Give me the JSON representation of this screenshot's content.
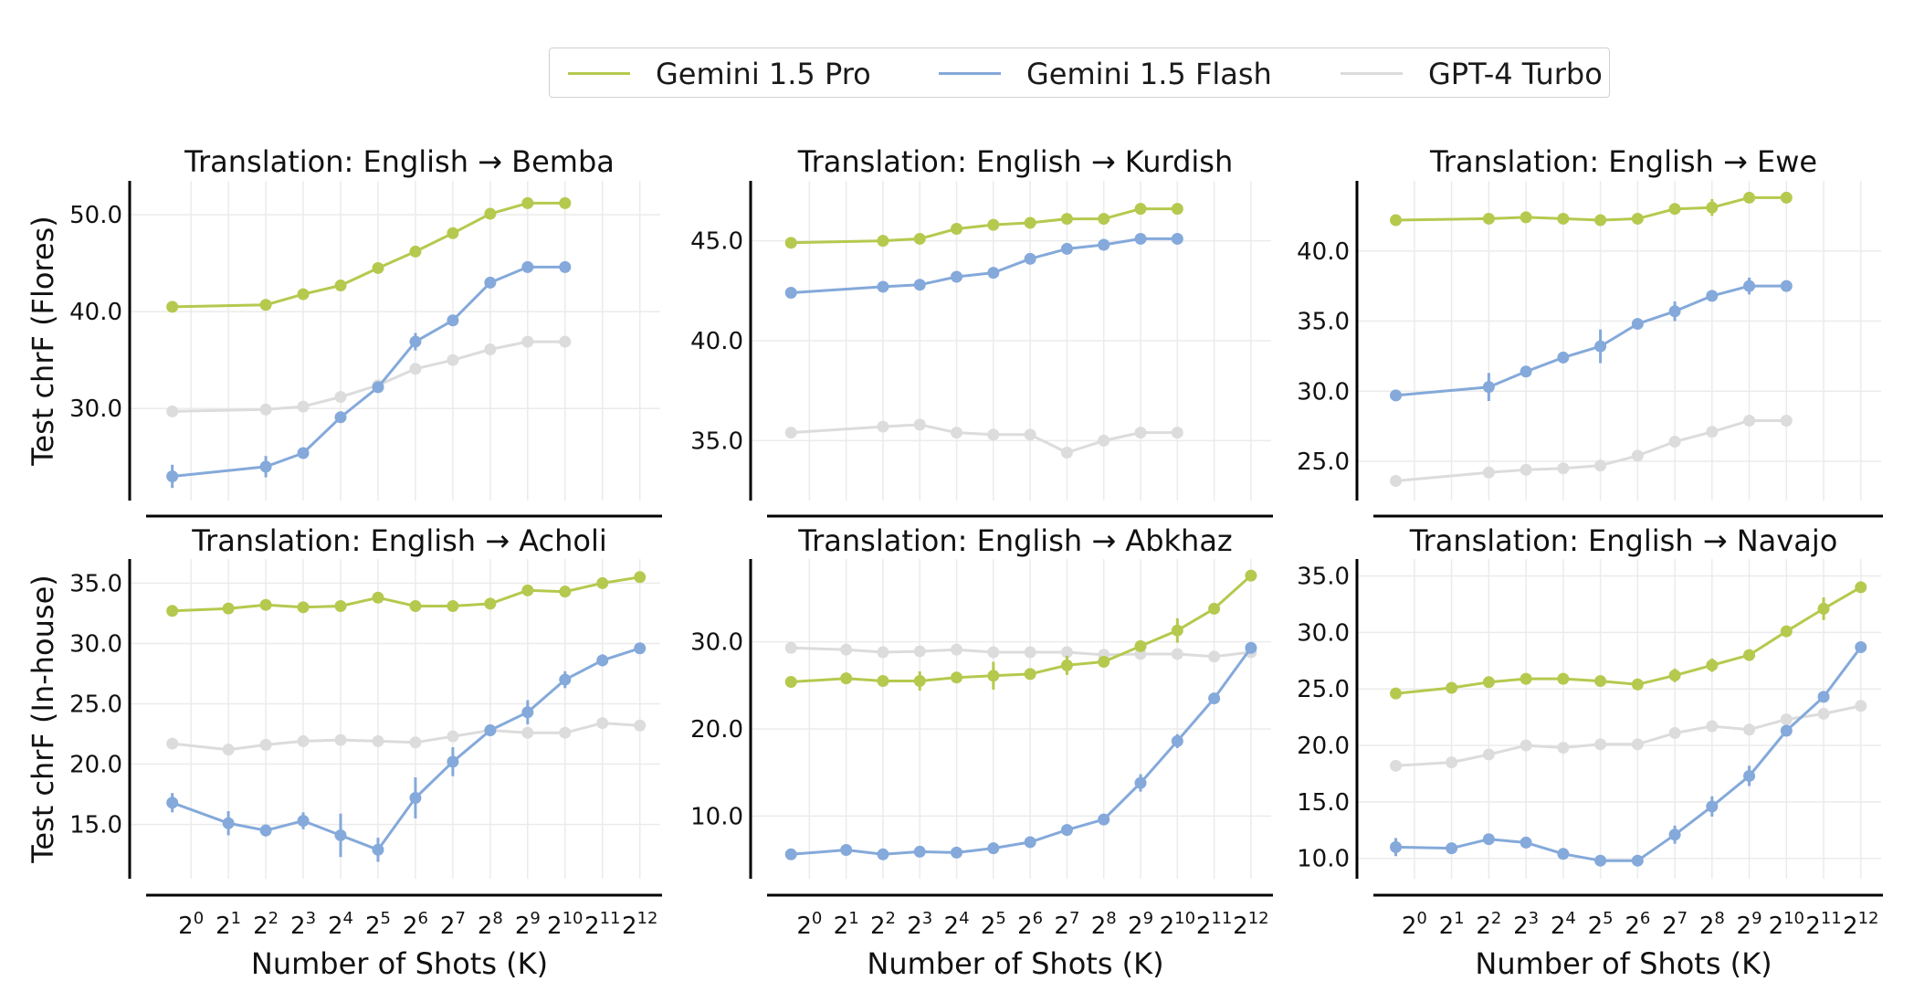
{
  "legend": [
    {
      "label": "Gemini 1.5 Pro",
      "color": "#b5c94e"
    },
    {
      "label": "Gemini 1.5 Flash",
      "color": "#84a9da"
    },
    {
      "label": "GPT-4 Turbo",
      "color": "#dcdcdc"
    }
  ],
  "shared": {
    "xlabel": "Number of Shots (K)",
    "ylabel_top": "Test chrF (Flores)",
    "ylabel_bottom": "Test chrF (In-house)",
    "x_tick_exponents": [
      "0",
      "1",
      "2",
      "3",
      "4",
      "5",
      "6",
      "7",
      "8",
      "9",
      "10",
      "11",
      "12"
    ]
  },
  "chart_data": [
    {
      "type": "line",
      "title": "Translation: English → Bemba",
      "ylabel": "Test chrF (Flores)",
      "x_scale": "log2",
      "xlim": [
        -1.2,
        12.3
      ],
      "ylim": [
        20.5,
        53.5
      ],
      "yticks": [
        "30.0",
        "40.0",
        "50.0"
      ],
      "series": [
        {
          "name": "Gemini 1.5 Pro",
          "x": [
            -0.5,
            2,
            3,
            4,
            5,
            6,
            7,
            8,
            9,
            10
          ],
          "y": [
            40.5,
            40.7,
            41.8,
            42.7,
            44.5,
            46.2,
            48.1,
            50.1,
            51.2,
            51.2
          ],
          "err": [
            0,
            0,
            0,
            0,
            0,
            0,
            0,
            0,
            0,
            0
          ]
        },
        {
          "name": "Gemini 1.5 Flash",
          "x": [
            -0.5,
            2,
            3,
            4,
            5,
            6,
            7,
            8,
            9,
            10
          ],
          "y": [
            23.0,
            24.0,
            25.4,
            29.1,
            32.2,
            36.9,
            39.1,
            43.0,
            44.6,
            44.6
          ],
          "err": [
            1.2,
            1.1,
            0,
            0,
            0,
            0.9,
            0,
            0,
            0,
            0
          ]
        },
        {
          "name": "GPT-4 Turbo",
          "x": [
            -0.5,
            2,
            3,
            4,
            5,
            6,
            7,
            8,
            9,
            10
          ],
          "y": [
            29.7,
            29.9,
            30.2,
            31.2,
            32.4,
            34.1,
            35.0,
            36.1,
            36.9,
            36.9
          ],
          "err": [
            0,
            0,
            0,
            0,
            0,
            0,
            0,
            0,
            0,
            0
          ]
        }
      ]
    },
    {
      "type": "line",
      "title": "Translation: English → Kurdish",
      "ylabel": "",
      "x_scale": "log2",
      "xlim": [
        -1.2,
        12.3
      ],
      "ylim": [
        32.0,
        48.0
      ],
      "yticks": [
        "35.0",
        "40.0",
        "45.0"
      ],
      "series": [
        {
          "name": "Gemini 1.5 Pro",
          "x": [
            -0.5,
            2,
            3,
            4,
            5,
            6,
            7,
            8,
            9,
            10
          ],
          "y": [
            44.9,
            45.0,
            45.1,
            45.6,
            45.8,
            45.9,
            46.1,
            46.1,
            46.6,
            46.6
          ],
          "err": [
            0,
            0,
            0,
            0,
            0,
            0,
            0,
            0,
            0,
            0
          ]
        },
        {
          "name": "Gemini 1.5 Flash",
          "x": [
            -0.5,
            2,
            3,
            4,
            5,
            6,
            7,
            8,
            9,
            10
          ],
          "y": [
            42.4,
            42.7,
            42.8,
            43.2,
            43.4,
            44.1,
            44.6,
            44.8,
            45.1,
            45.1
          ],
          "err": [
            0,
            0,
            0,
            0,
            0,
            0,
            0,
            0,
            0,
            0
          ]
        },
        {
          "name": "GPT-4 Turbo",
          "x": [
            -0.5,
            2,
            3,
            4,
            5,
            6,
            7,
            8,
            9,
            10
          ],
          "y": [
            35.4,
            35.7,
            35.8,
            35.4,
            35.3,
            35.3,
            34.4,
            35.0,
            35.4,
            35.4
          ],
          "err": [
            0,
            0,
            0,
            0,
            0,
            0,
            0,
            0,
            0,
            0
          ]
        }
      ]
    },
    {
      "type": "line",
      "title": "Translation: English → Ewe",
      "ylabel": "",
      "x_scale": "log2",
      "xlim": [
        -1.2,
        12.3
      ],
      "ylim": [
        22.2,
        45.0
      ],
      "yticks": [
        "25.0",
        "30.0",
        "35.0",
        "40.0"
      ],
      "series": [
        {
          "name": "Gemini 1.5 Pro",
          "x": [
            -0.5,
            2,
            3,
            4,
            5,
            6,
            7,
            8,
            9,
            10
          ],
          "y": [
            42.2,
            42.3,
            42.4,
            42.3,
            42.2,
            42.3,
            43.0,
            43.1,
            43.8,
            43.8
          ],
          "err": [
            0,
            0,
            0,
            0,
            0,
            0,
            0,
            0.6,
            0,
            0
          ]
        },
        {
          "name": "Gemini 1.5 Flash",
          "x": [
            -0.5,
            2,
            3,
            4,
            5,
            6,
            7,
            8,
            9,
            10
          ],
          "y": [
            29.7,
            30.3,
            31.4,
            32.4,
            33.2,
            34.8,
            35.7,
            36.8,
            37.5,
            37.5
          ],
          "err": [
            0,
            1.0,
            0,
            0,
            1.2,
            0,
            0.7,
            0,
            0.6,
            0
          ]
        },
        {
          "name": "GPT-4 Turbo",
          "x": [
            -0.5,
            2,
            3,
            4,
            5,
            6,
            7,
            8,
            9,
            10
          ],
          "y": [
            23.6,
            24.2,
            24.4,
            24.5,
            24.7,
            25.4,
            26.4,
            27.1,
            27.9,
            27.9
          ],
          "err": [
            0,
            0,
            0,
            0,
            0,
            0,
            0,
            0,
            0,
            0
          ]
        }
      ]
    },
    {
      "type": "line",
      "title": "Translation: English → Acholi",
      "ylabel": "Test chrF (In-house)",
      "xlabel": "Number of Shots (K)",
      "x_scale": "log2",
      "xlim": [
        -1.2,
        12.3
      ],
      "ylim": [
        10.5,
        37.0
      ],
      "yticks": [
        "15.0",
        "20.0",
        "25.0",
        "30.0",
        "35.0"
      ],
      "series": [
        {
          "name": "Gemini 1.5 Pro",
          "x": [
            -0.5,
            1,
            2,
            3,
            4,
            5,
            6,
            7,
            8,
            9,
            10,
            11,
            12
          ],
          "y": [
            32.7,
            32.9,
            33.2,
            33.0,
            33.1,
            33.8,
            33.1,
            33.1,
            33.3,
            34.4,
            34.3,
            35.0,
            35.5
          ],
          "err": [
            0,
            0,
            0,
            0,
            0,
            0,
            0,
            0,
            0,
            0,
            0,
            0,
            0
          ]
        },
        {
          "name": "Gemini 1.5 Flash",
          "x": [
            -0.5,
            1,
            2,
            3,
            4,
            5,
            6,
            7,
            8,
            9,
            10,
            11,
            12
          ],
          "y": [
            16.8,
            15.1,
            14.5,
            15.3,
            14.1,
            12.9,
            17.2,
            20.2,
            22.8,
            24.3,
            27.0,
            28.6,
            29.6
          ],
          "err": [
            0.8,
            1.0,
            0.5,
            0.7,
            1.8,
            1.0,
            1.7,
            1.2,
            0,
            1.0,
            0.7,
            0.5,
            0
          ]
        },
        {
          "name": "GPT-4 Turbo",
          "x": [
            -0.5,
            1,
            2,
            3,
            4,
            5,
            6,
            7,
            8,
            9,
            10,
            11,
            12
          ],
          "y": [
            21.7,
            21.2,
            21.6,
            21.9,
            22.0,
            21.9,
            21.8,
            22.3,
            22.8,
            22.6,
            22.6,
            23.4,
            23.2
          ],
          "err": [
            0,
            0,
            0,
            0,
            0,
            0,
            0,
            0,
            0,
            0,
            0,
            0,
            0
          ]
        }
      ]
    },
    {
      "type": "line",
      "title": "Translation: English → Abkhaz",
      "ylabel": "",
      "xlabel": "Number of Shots (K)",
      "x_scale": "log2",
      "xlim": [
        -1.2,
        12.3
      ],
      "ylim": [
        2.8,
        39.5
      ],
      "yticks": [
        "10.0",
        "20.0",
        "30.0"
      ],
      "series": [
        {
          "name": "Gemini 1.5 Pro",
          "x": [
            -0.5,
            1,
            2,
            3,
            4,
            5,
            6,
            7,
            8,
            9,
            10,
            11,
            12
          ],
          "y": [
            25.4,
            25.8,
            25.5,
            25.5,
            25.9,
            26.1,
            26.3,
            27.3,
            27.7,
            29.5,
            31.3,
            33.8,
            37.6
          ],
          "err": [
            0,
            0,
            0,
            1.1,
            0,
            1.6,
            0,
            1.1,
            0,
            0,
            1.4,
            0,
            0
          ]
        },
        {
          "name": "Gemini 1.5 Flash",
          "x": [
            -0.5,
            1,
            2,
            3,
            4,
            5,
            6,
            7,
            8,
            9,
            10,
            11,
            12
          ],
          "y": [
            5.6,
            6.1,
            5.6,
            5.9,
            5.8,
            6.3,
            7.0,
            8.4,
            9.6,
            13.8,
            18.6,
            23.5,
            29.3
          ],
          "err": [
            0,
            0,
            0,
            0,
            0,
            0,
            0,
            0,
            0,
            1.0,
            0.8,
            0,
            0
          ]
        },
        {
          "name": "GPT-4 Turbo",
          "x": [
            -0.5,
            1,
            2,
            3,
            4,
            5,
            6,
            7,
            8,
            9,
            10,
            11,
            12
          ],
          "y": [
            29.3,
            29.1,
            28.8,
            28.9,
            29.1,
            28.8,
            28.8,
            28.8,
            28.5,
            28.6,
            28.6,
            28.3,
            28.8
          ],
          "err": [
            0,
            0,
            0,
            0,
            0,
            0,
            0,
            0,
            0,
            0,
            0,
            0,
            0
          ]
        }
      ]
    },
    {
      "type": "line",
      "title": "Translation: English → Navajo",
      "ylabel": "",
      "xlabel": "Number of Shots (K)",
      "x_scale": "log2",
      "xlim": [
        -1.2,
        12.3
      ],
      "ylim": [
        8.2,
        36.5
      ],
      "yticks": [
        "10.0",
        "15.0",
        "20.0",
        "25.0",
        "30.0",
        "35.0"
      ],
      "series": [
        {
          "name": "Gemini 1.5 Pro",
          "x": [
            -0.5,
            1,
            2,
            3,
            4,
            5,
            6,
            7,
            8,
            9,
            10,
            11,
            12
          ],
          "y": [
            24.6,
            25.1,
            25.6,
            25.9,
            25.9,
            25.7,
            25.4,
            26.2,
            27.1,
            28.0,
            30.1,
            32.1,
            34.0
          ],
          "err": [
            0.5,
            0,
            0,
            0,
            0,
            0,
            0,
            0.6,
            0.6,
            0,
            0,
            1.0,
            0
          ]
        },
        {
          "name": "Gemini 1.5 Flash",
          "x": [
            -0.5,
            1,
            2,
            3,
            4,
            5,
            6,
            7,
            8,
            9,
            10,
            11,
            12
          ],
          "y": [
            11.0,
            10.9,
            11.7,
            11.4,
            10.4,
            9.8,
            9.8,
            12.1,
            14.6,
            17.3,
            21.3,
            24.3,
            28.7
          ],
          "err": [
            0.8,
            0,
            0,
            0,
            0,
            0,
            0,
            0.8,
            0.9,
            0.9,
            0,
            0,
            0
          ]
        },
        {
          "name": "GPT-4 Turbo",
          "x": [
            -0.5,
            1,
            2,
            3,
            4,
            5,
            6,
            7,
            8,
            9,
            10,
            11,
            12
          ],
          "y": [
            18.2,
            18.5,
            19.2,
            20.0,
            19.8,
            20.1,
            20.1,
            21.1,
            21.7,
            21.4,
            22.3,
            22.8,
            23.5
          ],
          "err": [
            0,
            0,
            0,
            0,
            0,
            0,
            0,
            0,
            0,
            0,
            0,
            0,
            0
          ]
        }
      ]
    }
  ]
}
